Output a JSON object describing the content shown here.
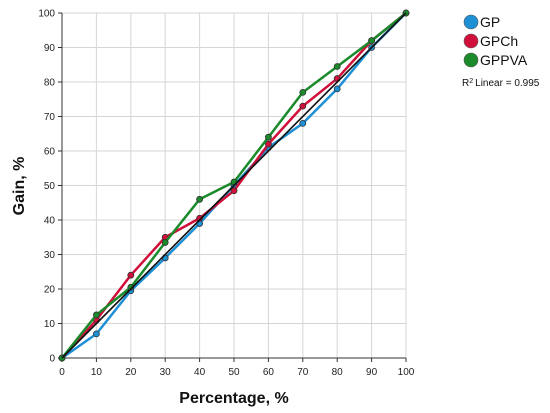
{
  "chart_data": {
    "type": "line",
    "xlabel": "Percentage, %",
    "ylabel": "Gain, %",
    "xlim": [
      0,
      100
    ],
    "ylim": [
      0,
      100
    ],
    "xticks": [
      0,
      10,
      20,
      30,
      40,
      50,
      60,
      70,
      80,
      90,
      100
    ],
    "yticks": [
      0,
      10,
      20,
      30,
      40,
      50,
      60,
      70,
      80,
      90,
      100
    ],
    "grid": true,
    "legend_position": "top-right",
    "series": [
      {
        "name": "GP",
        "color": "#1e90d6",
        "x": [
          0,
          10,
          20,
          30,
          40,
          50,
          60,
          70,
          80,
          90,
          100
        ],
        "y": [
          0,
          7,
          19.5,
          29,
          39,
          50,
          61,
          68,
          78,
          90,
          100
        ]
      },
      {
        "name": "GPCh",
        "color": "#d0103a",
        "x": [
          0,
          10,
          20,
          30,
          40,
          50,
          60,
          70,
          80,
          90,
          100
        ],
        "y": [
          0,
          11,
          24,
          35,
          40.5,
          48.5,
          62,
          73,
          81,
          92,
          100
        ]
      },
      {
        "name": "GPPVA",
        "color": "#1a8a2a",
        "x": [
          0,
          10,
          20,
          30,
          40,
          50,
          60,
          70,
          80,
          90,
          100
        ],
        "y": [
          0,
          12.5,
          20.5,
          33.5,
          46,
          51,
          64,
          77,
          84.5,
          92,
          100
        ]
      }
    ],
    "reference_line": {
      "color": "#111111",
      "from": [
        0,
        0
      ],
      "to": [
        100,
        100
      ]
    },
    "r2_label": "Linear = 0.995",
    "r2_prefix": "R",
    "r2_sup": "2"
  }
}
